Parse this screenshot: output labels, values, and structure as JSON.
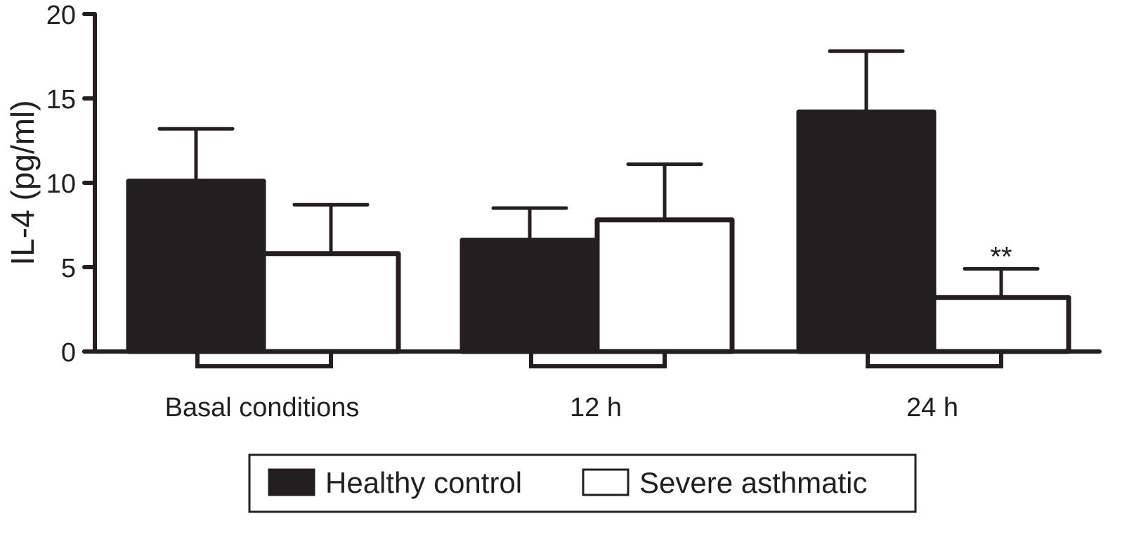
{
  "chart_data": {
    "type": "bar",
    "title": "",
    "xlabel": "",
    "ylabel": "IL-4 (pg/ml)",
    "ylim": [
      0,
      20
    ],
    "yticks": [
      0,
      5,
      10,
      15,
      20
    ],
    "grid": false,
    "categories": [
      "Basal conditions",
      "12 h",
      "24 h"
    ],
    "series": [
      {
        "name": "Healthy control",
        "color": "#231f20",
        "values": [
          10.1,
          6.6,
          14.2
        ],
        "error_upper": [
          13.2,
          8.5,
          17.8
        ]
      },
      {
        "name": "Severe asthmatic",
        "color": "#ffffff",
        "values": [
          5.8,
          7.8,
          3.2
        ],
        "error_upper": [
          8.7,
          11.1,
          4.9
        ]
      }
    ],
    "annotations": [
      {
        "category": "24 h",
        "series": "Severe asthmatic",
        "text": "**"
      }
    ],
    "legend_placement": "bottom-center"
  }
}
